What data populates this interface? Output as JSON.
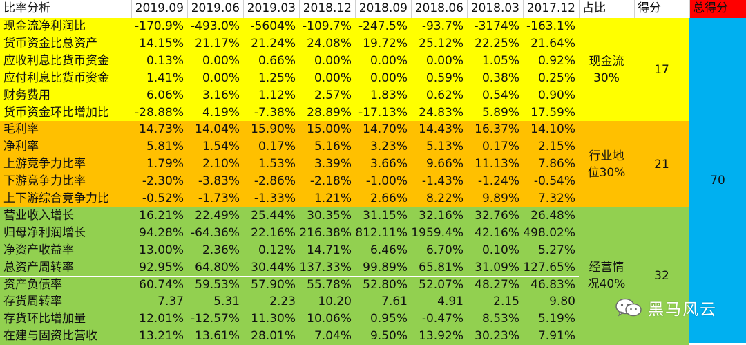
{
  "header": {
    "label": "比率分析",
    "periods": [
      "2019.09",
      "2019.06",
      "2019.03",
      "2018.12",
      "2018.09",
      "2018.06",
      "2018.03",
      "2017.12"
    ],
    "weight": "占比",
    "score": "得分",
    "total": "总得分"
  },
  "groups": [
    {
      "name": "现金流",
      "weight_pct": "30%",
      "score": "17",
      "color": "#ffff00",
      "rows": [
        {
          "label": "现金流净利润比",
          "values": [
            "-170.9%",
            "-493.0%",
            "-5604%",
            "-109.7%",
            "-247.5%",
            "-93.7%",
            "-3174%",
            "-163.1%"
          ]
        },
        {
          "label": "货币资金比总资产",
          "values": [
            "14.15%",
            "21.17%",
            "21.24%",
            "24.08%",
            "19.72%",
            "25.12%",
            "22.25%",
            "21.64%"
          ]
        },
        {
          "label": "应收利息比货币资金",
          "values": [
            "0.13%",
            "0.00%",
            "0.66%",
            "0.00%",
            "0.00%",
            "0.00%",
            "1.05%",
            "0.92%"
          ]
        },
        {
          "label": "应付利息比货币资金",
          "values": [
            "1.41%",
            "0.00%",
            "1.25%",
            "0.00%",
            "0.00%",
            "0.59%",
            "0.38%",
            "0.25%"
          ]
        },
        {
          "label": "财务费用",
          "values": [
            "6.06%",
            "3.16%",
            "1.12%",
            "2.57%",
            "1.83%",
            "0.62%",
            "0.54%",
            "0.90%"
          ]
        },
        {
          "label": "货币资金环比增加比",
          "values": [
            "-28.88%",
            "4.19%",
            "-7.38%",
            "28.89%",
            "-17.13%",
            "24.83%",
            "5.89%",
            "17.59%"
          ]
        }
      ]
    },
    {
      "name": "行业地位",
      "weight_pct": "30%",
      "score": "21",
      "color": "#ffc000",
      "rows": [
        {
          "label": "毛利率",
          "values": [
            "14.73%",
            "14.04%",
            "15.90%",
            "15.00%",
            "14.70%",
            "14.43%",
            "16.37%",
            "14.10%"
          ]
        },
        {
          "label": "净利率",
          "values": [
            "5.81%",
            "1.54%",
            "0.17%",
            "5.16%",
            "3.23%",
            "5.13%",
            "0.17%",
            "2.15%"
          ]
        },
        {
          "label": "上游竞争力比率",
          "values": [
            "1.79%",
            "2.10%",
            "1.53%",
            "3.39%",
            "3.66%",
            "9.66%",
            "11.13%",
            "7.86%"
          ]
        },
        {
          "label": "下游竞争力比率",
          "values": [
            "-2.30%",
            "-3.83%",
            "-2.86%",
            "-2.18%",
            "-1.00%",
            "-1.43%",
            "-1.24%",
            "-0.54%"
          ]
        },
        {
          "label": "上下游综合竞争力比",
          "values": [
            "-0.52%",
            "-1.73%",
            "-1.33%",
            "1.21%",
            "2.66%",
            "8.22%",
            "9.89%",
            "7.32%"
          ]
        }
      ]
    },
    {
      "name": "经营情况",
      "weight_pct": "40%",
      "score": "32",
      "color": "#92d050",
      "rows": [
        {
          "label": "营业收入增长",
          "values": [
            "16.21%",
            "22.49%",
            "25.44%",
            "30.35%",
            "31.15%",
            "32.16%",
            "32.76%",
            "26.48%"
          ]
        },
        {
          "label": "归母净利润增长",
          "values": [
            "94.28%",
            "-64.36%",
            "22.16%",
            "216.38%",
            "812.11%",
            "1959.4%",
            "42.16%",
            "498.02%"
          ]
        },
        {
          "label": "净资产收益率",
          "values": [
            "13.00%",
            "2.36%",
            "0.12%",
            "14.71%",
            "6.46%",
            "6.70%",
            "0.10%",
            "5.27%"
          ]
        },
        {
          "label": "总资产周转率",
          "values": [
            "92.95%",
            "64.80%",
            "30.44%",
            "137.33%",
            "99.89%",
            "65.81%",
            "31.09%",
            "127.65%"
          ]
        },
        {
          "label": "资产负债率",
          "values": [
            "60.74%",
            "59.53%",
            "57.90%",
            "55.78%",
            "52.80%",
            "52.07%",
            "48.27%",
            "46.83%"
          ]
        },
        {
          "label": "存货周转率",
          "values": [
            "7.37",
            "5.31",
            "2.23",
            "10.20",
            "7.61",
            "4.91",
            "2.15",
            "9.80"
          ]
        },
        {
          "label": "存货环比增加量",
          "values": [
            "12.01%",
            "-12.57%",
            "11.30%",
            "10.06%",
            "0.95%",
            "-0.47%",
            "8.53%",
            "5.19%"
          ]
        },
        {
          "label": "在建与固资比营收",
          "values": [
            "13.21%",
            "13.61%",
            "28.01%",
            "7.04%",
            "9.50%",
            "13.92%",
            "30.23%",
            "7.91%"
          ]
        }
      ]
    }
  ],
  "total_score": "70",
  "colors": {
    "total_header": "#ff0000",
    "total_column": "#00b0f0"
  },
  "watermark": {
    "icon": "wechat-icon",
    "text": "黑马风云"
  }
}
